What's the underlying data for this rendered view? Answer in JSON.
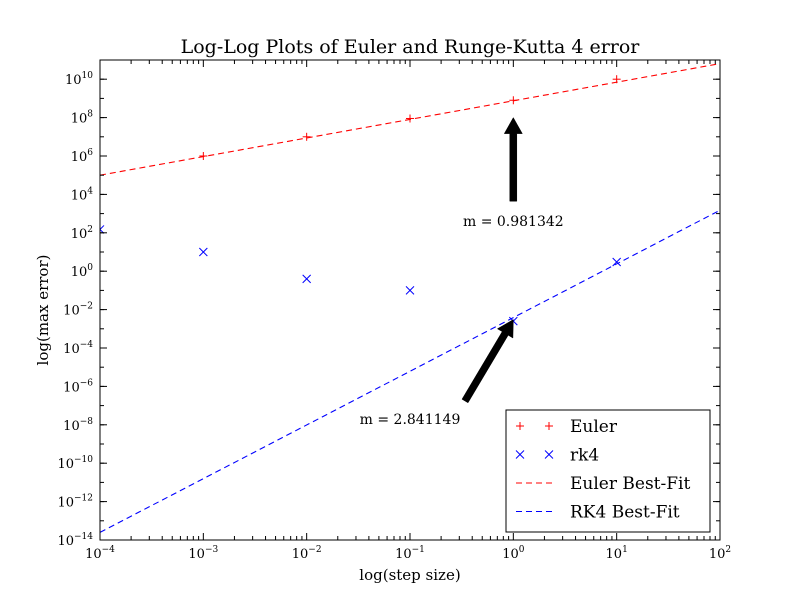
{
  "chart_data": {
    "type": "scatter",
    "title": "Log-Log Plots of Euler and Runge-Kutta 4 error",
    "xlabel": "log(step size)",
    "ylabel": "log(max error)",
    "xscale": "log",
    "yscale": "log",
    "xlim": [
      0.0001,
      100
    ],
    "ylim": [
      1e-14,
      100000000000.0
    ],
    "grid": false,
    "legend_position": "lower right",
    "x_ticks": [
      "10^-4",
      "10^-3",
      "10^-2",
      "10^-1",
      "10^0",
      "10^1",
      "10^2"
    ],
    "y_ticks": [
      "10^-14",
      "10^-12",
      "10^-10",
      "10^-8",
      "10^-6",
      "10^-4",
      "10^-2",
      "10^0",
      "10^2",
      "10^4",
      "10^6",
      "10^8",
      "10^10"
    ],
    "series": [
      {
        "name": "Euler",
        "style": "marker-plus",
        "color": "#ff0000",
        "x": [
          0.001,
          0.01,
          0.1,
          1,
          10
        ],
        "y": [
          1000000.0,
          10000000.0,
          90000000.0,
          800000000.0,
          10000000000.0
        ]
      },
      {
        "name": "rk4",
        "style": "marker-x",
        "color": "#0000ff",
        "x": [
          0.0001,
          0.001,
          0.01,
          0.1,
          1,
          10
        ],
        "y": [
          150,
          10,
          0.4,
          0.1,
          0.0025,
          3
        ]
      },
      {
        "name": "Euler Best-Fit",
        "style": "dashed-line",
        "color": "#ff0000",
        "x": [
          0.0001,
          100
        ],
        "y": [
          100000.0,
          65000000000.0
        ]
      },
      {
        "name": "RK4 Best-Fit",
        "style": "dashed-line",
        "color": "#0000ff",
        "x": [
          0.0001,
          100
        ],
        "y": [
          2.5e-14,
          1500.0
        ]
      }
    ],
    "annotations": [
      {
        "text": "m = 0.981342",
        "text_x": 1,
        "text_y": 400.0,
        "arrow_to_x": 1,
        "arrow_to_y": 100000000.0
      },
      {
        "text": "m = 2.841149",
        "text_x": 0.1,
        "text_y": 2e-08,
        "arrow_to_x": 1,
        "arrow_to_y": 0.003
      }
    ]
  }
}
